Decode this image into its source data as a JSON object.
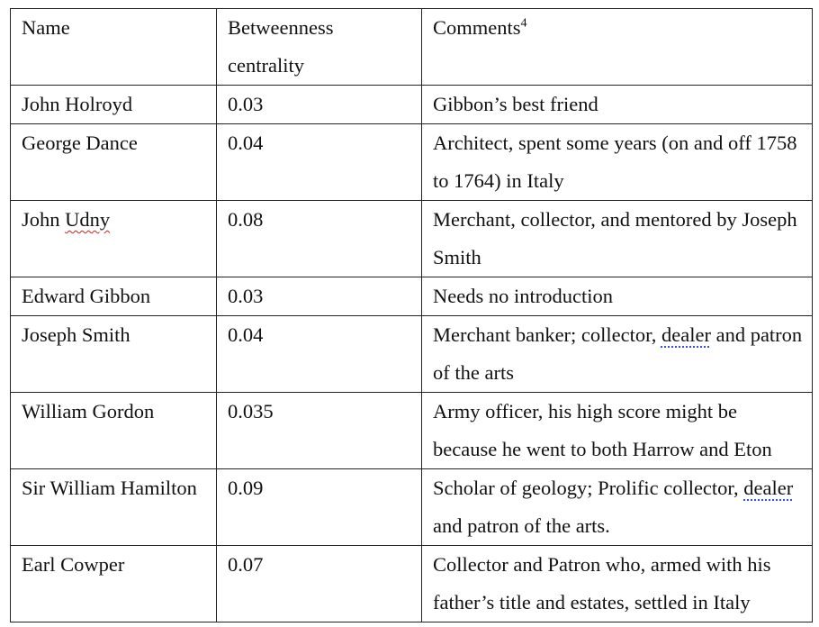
{
  "table": {
    "headers": {
      "name": "Name",
      "centrality": "Betweenness centrality",
      "comments": "Comments",
      "comments_footnote": "4"
    },
    "rows": [
      {
        "name": "John Holroyd",
        "centrality": "0.03",
        "comment": "Gibbon’s best friend"
      },
      {
        "name": "George Dance",
        "centrality": "0.04",
        "comment": "Architect, spent some years (on and off 1758 to 1764) in Italy"
      },
      {
        "name_first": "John ",
        "name_flagged": "Udny",
        "centrality": "0.08",
        "comment": "Merchant, collector, and mentored by Joseph Smith"
      },
      {
        "name": "Edward Gibbon",
        "centrality": "0.03",
        "comment": "Needs no introduction"
      },
      {
        "name": "Joseph Smith",
        "centrality": "0.04",
        "comment_before": "Merchant banker; collector, ",
        "comment_flagged": "dealer",
        "comment_after": " and patron of the arts"
      },
      {
        "name": "William Gordon",
        "centrality": "0.035",
        "comment": "Army officer, his high score might be because he went to both Harrow and Eton"
      },
      {
        "name": "Sir William Hamilton",
        "centrality": "0.09",
        "comment_before": "Scholar of geology; Prolific collector, ",
        "comment_flagged": "dealer",
        "comment_after": " and patron of the arts."
      },
      {
        "name": "Earl Cowper",
        "centrality": "0.07",
        "comment": "Collector and Patron who, armed with his father’s title and estates, settled in Italy"
      }
    ]
  }
}
